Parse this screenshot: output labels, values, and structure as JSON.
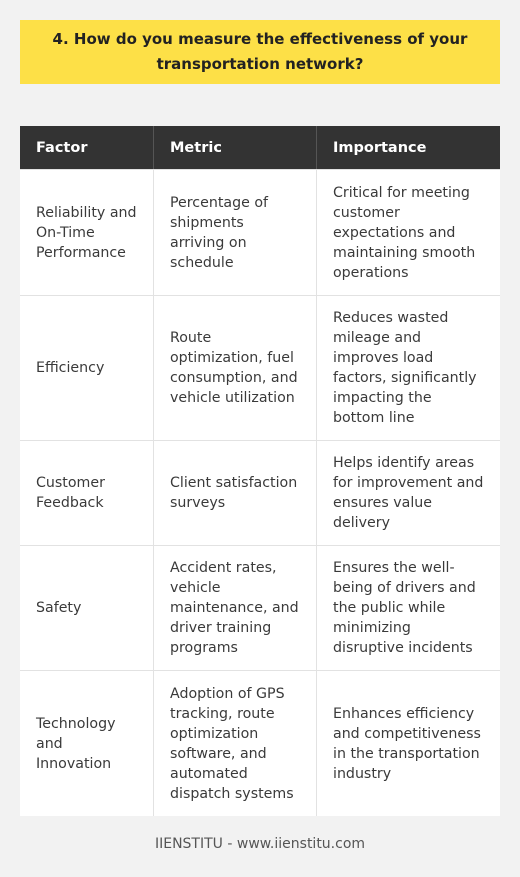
{
  "title": "4. How do you measure the effectiveness of your transportation network?",
  "table": {
    "headers": [
      "Factor",
      "Metric",
      "Importance"
    ],
    "rows": [
      [
        "Reliability and On-Time Performance",
        "Percentage of shipments arriving on schedule",
        "Critical for meeting customer expectations and maintaining smooth operations"
      ],
      [
        "Efficiency",
        "Route optimization, fuel consumption, and vehicle utilization",
        "Reduces wasted mileage and improves load factors, significantly impacting the bottom line"
      ],
      [
        "Customer Feedback",
        "Client satisfaction surveys",
        "Helps identify areas for improvement and ensures value delivery"
      ],
      [
        "Safety",
        "Accident rates, vehicle maintenance, and driver training programs",
        "Ensures the well-being of drivers and the public while minimizing disruptive incidents"
      ],
      [
        "Technology and Innovation",
        "Adoption of GPS tracking, route optimization software, and automated dispatch systems",
        "Enhances efficiency and competitiveness in the transportation industry"
      ]
    ]
  },
  "footer": "IIENSTITU - www.iienstitu.com",
  "colors": {
    "title_bg": "#fde047",
    "header_bg": "#333333",
    "page_bg": "#f2f2f2"
  }
}
